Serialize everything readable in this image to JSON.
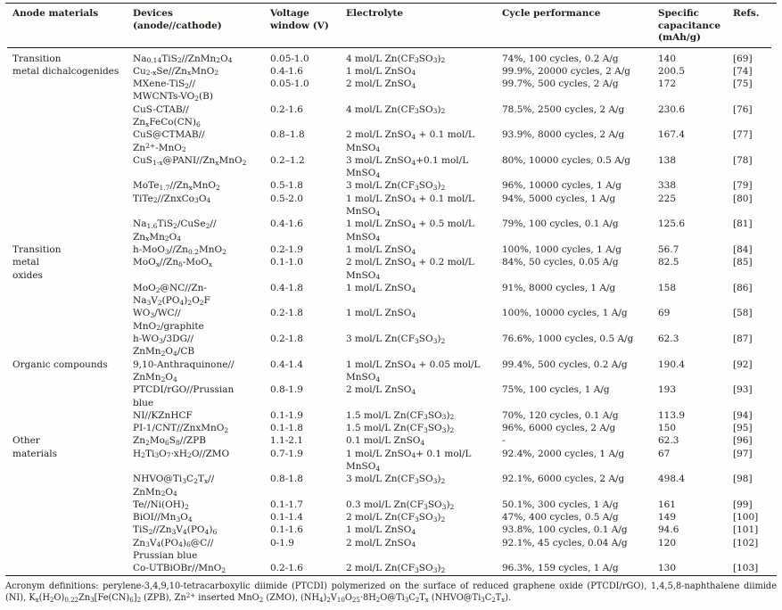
{
  "page": {
    "background": "#fefefe",
    "text_color": "#241e1b",
    "rule_color": "#231c18"
  },
  "table": {
    "headers": [
      {
        "key": "anode",
        "label": "Anode materials"
      },
      {
        "key": "device",
        "label": "Devices (anode//cathode)"
      },
      {
        "key": "voltage",
        "label": "Voltage\nwindow (V)"
      },
      {
        "key": "electrolyte",
        "label": "Electrolyte"
      },
      {
        "key": "cycle",
        "label": "Cycle performance"
      },
      {
        "key": "capacitance",
        "label": "Specific\ncapacitance\n(mAh/g)"
      },
      {
        "key": "ref",
        "label": "Refs."
      }
    ],
    "rows": [
      {
        "anode": "Transition",
        "device": "Na~0.14~TiS~2~//ZnMn~2~O~4~",
        "voltage": "0.05-1.0",
        "electrolyte": "4 mol/L Zn(CF~3~SO~3~)~2~",
        "cycle": "74%, 100 cycles, 0.2 A/g",
        "capacitance": "140",
        "ref": "[69]"
      },
      {
        "anode": "metal dichalcogenides",
        "device": "Cu~2-x~Se//Zn~x~MnO~2~",
        "voltage": "0.4-1.6",
        "electrolyte": "1 mol/L ZnSO~4~",
        "cycle": "99.9%, 20000 cycles, 2 A/g",
        "capacitance": "200.5",
        "ref": "[74]"
      },
      {
        "anode": "",
        "device": "MXene-TiS~2~//\nMWCNTs-VO~2~(B)",
        "voltage": "0.05-1.0",
        "electrolyte": "2 mol/L ZnSO~4~",
        "cycle": "99.7%, 500 cycles, 2 A/g",
        "capacitance": "172",
        "ref": "[75]"
      },
      {
        "anode": "",
        "device": "CuS-CTAB//\nZn~x~FeCo(CN)~6~",
        "voltage": "0.2-1.6",
        "electrolyte": "4 mol/L Zn(CF~3~SO~3~)~2~",
        "cycle": "78.5%, 2500 cycles, 2 A/g",
        "capacitance": "230.6",
        "ref": "[76]"
      },
      {
        "anode": "",
        "device": "CuS@CTMAB//\nZn^2+^-MnO~2~",
        "voltage": "0.8–1.8",
        "electrolyte": "2 mol/L ZnSO~4~ + 0.1 mol/L\nMnSO~4~",
        "cycle": "93.9%, 8000 cycles, 2 A/g",
        "capacitance": "167.4",
        "ref": "[77]"
      },
      {
        "anode": "",
        "device": "CuS~1-x~@PANI//Zn~x~MnO~2~",
        "voltage": "0.2–1.2",
        "electrolyte": "3 mol/L ZnSO~4~+0.1 mol/L\nMnSO~4~",
        "cycle": "80%, 10000 cycles, 0.5 A/g",
        "capacitance": "138",
        "ref": "[78]"
      },
      {
        "anode": "",
        "device": "MoTe~1.7~//Zn~x~MnO~2~",
        "voltage": "0.5-1.8",
        "electrolyte": "3 mol/L Zn(CF~3~SO~3~)~2~",
        "cycle": "96%, 10000 cycles, 1 A/g",
        "capacitance": "338",
        "ref": "[79]"
      },
      {
        "anode": "",
        "device": "TiTe~2~//ZnxCo~3~O~4~",
        "voltage": "0.5-2.0",
        "electrolyte": "1 mol/L ZnSO~4~ + 0.1 mol/L\nMnSO~4~",
        "cycle": "94%, 5000 cycles, 1 A/g",
        "capacitance": "225",
        "ref": "[80]"
      },
      {
        "anode": "",
        "device": "Na~1.6~TiS~2~/CuSe~2~//\nZn~x~Mn~2~O~4~",
        "voltage": "0.4-1.6",
        "electrolyte": "1 mol/L ZnSO~4~ + 0.5 mol/L\nMnSO~4~",
        "cycle": "79%, 100 cycles, 0.1 A/g",
        "capacitance": "125.6",
        "ref": "[81]"
      },
      {
        "anode": "Transition",
        "device": "h-MoO~3~//Zn~0.2~MnO~2~",
        "voltage": "0.2-1.9",
        "electrolyte": "1 mol/L ZnSO~4~",
        "cycle": "100%, 1000 cycles, 1 A/g",
        "capacitance": "56.7",
        "ref": "[84]"
      },
      {
        "anode": "metal\noxides",
        "device": "MoO~x~//Zn~δ~-MoO~x~",
        "voltage": "0.1-1.0",
        "electrolyte": "2 mol/L ZnSO~4~ + 0.2 mol/L\nMnSO~4~",
        "cycle": "84%, 50 cycles, 0.05 A/g",
        "capacitance": "82.5",
        "ref": "[85]"
      },
      {
        "anode": "",
        "device": "MoO~2~@NC//Zn-\nNa~3~V~2~(PO~4~)~2~O~2~F",
        "voltage": "0.4-1.8",
        "electrolyte": "1 mol/L ZnSO~4~",
        "cycle": "91%, 8000 cycles, 1 A/g",
        "capacitance": "158",
        "ref": "[86]"
      },
      {
        "anode": "",
        "device": "WO~3~/WC//\nMnO~2~/graphite",
        "voltage": "0.2-1.8",
        "electrolyte": "1 mol/L ZnSO~4~",
        "cycle": "100%, 10000 cycles, 1 A/g",
        "capacitance": "69",
        "ref": "[58]"
      },
      {
        "anode": "",
        "device": "h-WO~3~/3DG//\nZnMn~2~O~4~/CB",
        "voltage": "0.2-1.8",
        "electrolyte": "3 mol/L Zn(CF~3~SO~3~)~2~",
        "cycle": "76.6%, 1000 cycles, 0.5 A/g",
        "capacitance": "62.3",
        "ref": "[87]"
      },
      {
        "anode": "Organic compounds",
        "device": "9,10-Anthraquinone//\nZnMn~2~O~4~",
        "voltage": "0.4-1.4",
        "electrolyte": "1 mol/L ZnSO~4~ + 0.05 mol/L\nMnSO~4~",
        "cycle": "99.4%, 500 cycles, 0.2 A/g",
        "capacitance": "190.4",
        "ref": "[92]"
      },
      {
        "anode": "",
        "device": "PTCDI/rGO//Prussian\nblue",
        "voltage": "0.8-1.9",
        "electrolyte": "2 mol/L ZnSO~4~",
        "cycle": "75%, 100 cycles, 1 A/g",
        "capacitance": "193",
        "ref": "[93]"
      },
      {
        "anode": "",
        "device": "NI//KZnHCF",
        "voltage": "0.1-1.9",
        "electrolyte": "1.5 mol/L Zn(CF~3~SO~3~)~2~",
        "cycle": "70%, 120 cycles, 0.1 A/g",
        "capacitance": "113.9",
        "ref": "[94]"
      },
      {
        "anode": "",
        "device": "PI-1/CNT//ZnxMnO~2~",
        "voltage": "0.1-1.8",
        "electrolyte": "1.5 mol/L Zn(CF~3~SO~3~)~2~",
        "cycle": "96%, 6000 cycles, 2 A/g",
        "capacitance": "150",
        "ref": "[95]"
      },
      {
        "anode": "Other",
        "device": "Zn~2~Mo~6~S~8~//ZPB",
        "voltage": "1.1-2.1",
        "electrolyte": "0.1 mol/L ZnSO~4~",
        "cycle": "-",
        "capacitance": "62.3",
        "ref": "[96]"
      },
      {
        "anode": "materials",
        "device": "H~2~Ti~3~O~7~·xH~2~O//ZMO",
        "voltage": "0.7-1.9",
        "electrolyte": "1 mol/L ZnSO~4~+ 0.1 mol/L\nMnSO~4~",
        "cycle": "92.4%, 2000 cycles, 1 A/g",
        "capacitance": "67",
        "ref": "[97]"
      },
      {
        "anode": "",
        "device": "NHVO@Ti~3~C~2~T~x~//\nZnMn~2~O~4~",
        "voltage": "0.8-1.8",
        "electrolyte": "3 mol/L Zn(CF~3~SO~3~)~2~",
        "cycle": "92.1%, 6000 cycles, 2 A/g",
        "capacitance": "498.4",
        "ref": "[98]"
      },
      {
        "anode": "",
        "device": "Te//Ni(OH)~2~",
        "voltage": "0.1-1.7",
        "electrolyte": "0.3 mol/L Zn(CF~3~SO~3~)~2~",
        "cycle": "50.1%, 300 cycles, 1 A/g",
        "capacitance": "161",
        "ref": "[99]"
      },
      {
        "anode": "",
        "device": "BiOI//Mn~3~O~4~",
        "voltage": "0.1-1.4",
        "electrolyte": "2 mol/L Zn(CF~3~SO~3~)~2~",
        "cycle": "47%, 400 cycles, 0.5 A/g",
        "capacitance": "149",
        "ref": "[100]"
      },
      {
        "anode": "",
        "device": "TiS~2~//Zn~3~V~4~(PO~4~)~6~",
        "voltage": "0.1-1.6",
        "electrolyte": "1 mol/L ZnSO~4~",
        "cycle": "93.8%, 100 cycles, 0.1 A/g",
        "capacitance": "94.6",
        "ref": "[101]"
      },
      {
        "anode": "",
        "device": "Zn~3~V~4~(PO~4~)~6~@C//\nPrussian blue",
        "voltage": "0-1.9",
        "electrolyte": "2 mol/L ZnSO~4~",
        "cycle": "92.1%, 45 cycles, 0.04 A/g",
        "capacitance": "120",
        "ref": "[102]"
      },
      {
        "anode": "",
        "device": "Co-UTBiOBr//MnO~2~",
        "voltage": "0.2-1.6",
        "electrolyte": "2 mol/L Zn(CF~3~SO~3~)~2~",
        "cycle": "96.3%, 159 cycles, 1 A/g",
        "capacitance": "130",
        "ref": "[103]"
      }
    ]
  },
  "footnote": {
    "text": "Acronym definitions: perylene-3,4,9,10-tetracarboxylic diimide (PTCDI) polymerized on the surface of reduced graphene oxide (PTCDI/rGO), 1,4,5,8-naphthalene diimide (NI), K~x~(H~2~O)~0.22~Zn~3~[Fe(CN)~6~]~2~ (ZPB), Zn^2+^ inserted MnO~2~ (ZMO), (NH~4~)~2~V~10~O~25~·8H~2~O@Ti~3~C~2~T~x~ (NHVO@Ti~3~C~2~T~x~)."
  }
}
